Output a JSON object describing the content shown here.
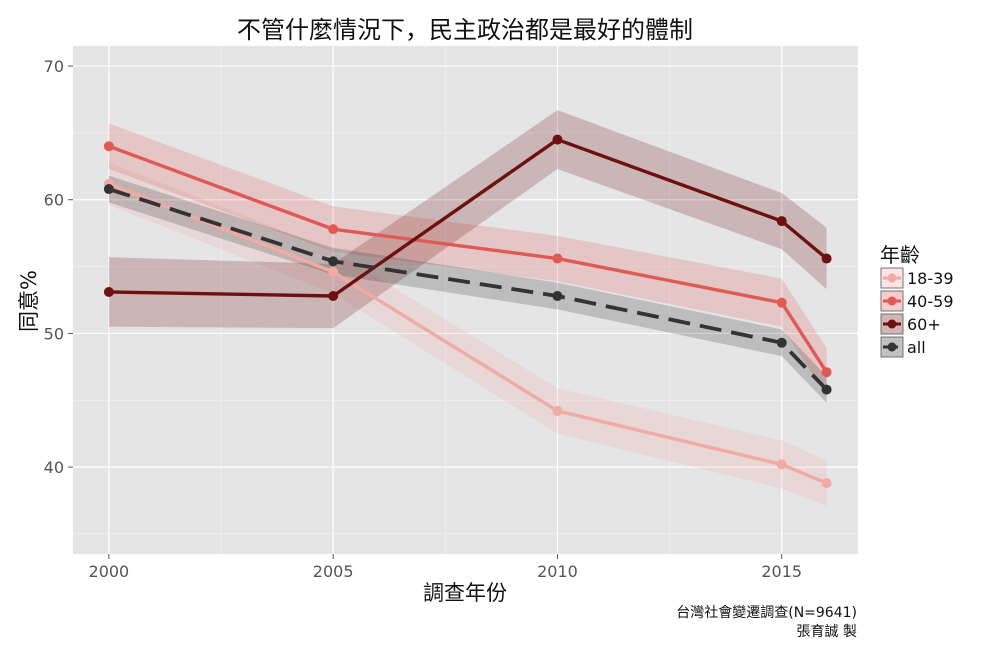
{
  "chart_data": {
    "type": "line",
    "title": "不管什麼情況下，民主政治都是最好的體制",
    "xlabel": "調查年份",
    "ylabel": "同意%",
    "x": [
      2000,
      2005,
      2010,
      2015,
      2016
    ],
    "xlim": [
      1999.2,
      2016.7
    ],
    "ylim": [
      33.5,
      71.5
    ],
    "x_ticks": [
      2000,
      2005,
      2010,
      2015
    ],
    "y_ticks": [
      40,
      50,
      60,
      70
    ],
    "x_tick_labels": [
      "2000",
      "2005",
      "2010",
      "2015"
    ],
    "y_tick_labels": [
      "40",
      "50",
      "60",
      "70"
    ],
    "grid": true,
    "legend_title": "年齡",
    "legend_position": "right",
    "series": [
      {
        "name": "18-39",
        "color": "#f2aaa4",
        "dashed": false,
        "values": [
          61.2,
          54.6,
          44.2,
          40.2,
          38.8
        ],
        "lower": [
          59.6,
          53.0,
          42.5,
          38.4,
          37.1
        ],
        "upper": [
          62.8,
          56.2,
          45.9,
          42.0,
          40.5
        ]
      },
      {
        "name": "40-59",
        "color": "#e05a55",
        "dashed": false,
        "values": [
          64.0,
          57.8,
          55.6,
          52.3,
          47.1
        ],
        "lower": [
          62.3,
          56.1,
          53.9,
          50.5,
          45.3
        ],
        "upper": [
          65.7,
          59.5,
          57.3,
          54.1,
          48.9
        ]
      },
      {
        "name": "60+",
        "color": "#6e1010",
        "dashed": false,
        "values": [
          53.1,
          52.8,
          64.5,
          58.4,
          55.6
        ],
        "lower": [
          50.5,
          50.4,
          62.3,
          56.3,
          53.3
        ],
        "upper": [
          55.7,
          55.2,
          66.7,
          60.5,
          57.9
        ]
      },
      {
        "name": "all",
        "color": "#333333",
        "dashed": true,
        "values": [
          60.8,
          55.4,
          52.8,
          49.3,
          45.8
        ],
        "lower": [
          59.8,
          54.4,
          51.8,
          48.3,
          44.8
        ],
        "upper": [
          61.8,
          56.4,
          53.8,
          50.3,
          46.8
        ]
      }
    ],
    "caption": [
      "台灣社會變遷調查(N=9641)",
      "張育誠 製"
    ]
  }
}
